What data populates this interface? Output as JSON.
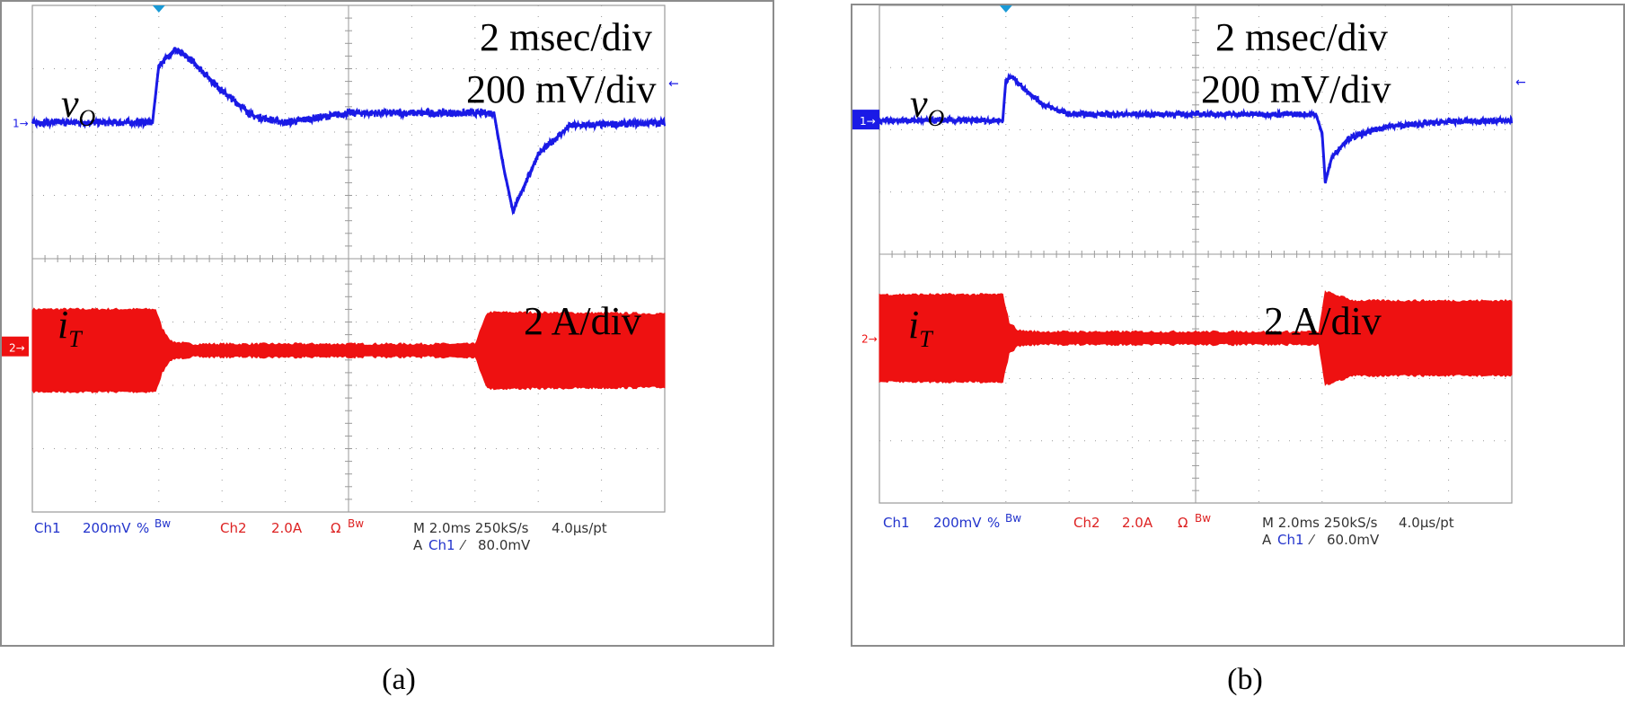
{
  "panels": [
    {
      "id": "a",
      "caption": "(a)",
      "time_div": "2 msec/div",
      "volt_div": "200 mV/div",
      "amp_div": "2 A/div",
      "vo_symbol": "v",
      "vo_sub": "O",
      "it_symbol": "i",
      "it_sub": "T",
      "ch1_marker": "1",
      "ch2_marker": "2",
      "status": {
        "ch1": "Ch1",
        "ch1_scale": "200mV",
        "ch1_cpl": "%",
        "ch1_bw": "Bw",
        "ch2": "Ch2",
        "ch2_scale": "2.0A",
        "ch2_cpl": "Ω",
        "ch2_bw": "Bw",
        "timebase": "M 2.0ms 250kS/s",
        "per_pt": "4.0µs/pt",
        "trig_src": "A",
        "trig_ch": "Ch1",
        "trig_slope": "⁄",
        "trig_level": "80.0mV"
      }
    },
    {
      "id": "b",
      "caption": "(b)",
      "time_div": "2 msec/div",
      "volt_div": "200 mV/div",
      "amp_div": "2 A/div",
      "vo_symbol": "v",
      "vo_sub": "O",
      "it_symbol": "i",
      "it_sub": "T",
      "ch1_marker": "1",
      "ch2_marker": "2",
      "status": {
        "ch1": "Ch1",
        "ch1_scale": "200mV",
        "ch1_cpl": "%",
        "ch1_bw": "Bw",
        "ch2": "Ch2",
        "ch2_scale": "2.0A",
        "ch2_cpl": "Ω",
        "ch2_bw": "Bw",
        "timebase": "M 2.0ms 250kS/s",
        "per_pt": "4.0µs/pt",
        "trig_src": "A",
        "trig_ch": "Ch1",
        "trig_slope": "⁄",
        "trig_level": "60.0mV"
      }
    }
  ],
  "colors": {
    "ch1": "#1a1ae6",
    "ch2": "#ee1111",
    "grid": "#9a9a9a",
    "status_blue": "#2233cc",
    "status_red": "#dd2222",
    "status_black": "#333333",
    "trigger": "#1a9ad6"
  },
  "chart_data": [
    {
      "type": "line",
      "panel": "a",
      "x_unit": "div",
      "xlim": [
        0,
        10
      ],
      "ylim_div": [
        -4,
        4
      ],
      "grid": true,
      "series": [
        {
          "channel": "Ch1",
          "name": "vO",
          "x": [
            0,
            1.9,
            2.0,
            2.25,
            2.5,
            3.0,
            3.5,
            4.0,
            5.0,
            7.0,
            7.3,
            7.45,
            7.6,
            8.0,
            8.5,
            10
          ],
          "y": [
            0,
            0,
            0.9,
            1.15,
            1.0,
            0.5,
            0.1,
            0.0,
            0.15,
            0.15,
            0.15,
            -0.7,
            -1.4,
            -0.5,
            -0.05,
            0
          ],
          "noise": 0.06
        },
        {
          "channel": "Ch2",
          "name": "iT",
          "x": [
            0,
            1.95,
            2.05,
            2.2,
            2.5,
            3.0,
            7.0,
            7.2,
            7.6,
            10
          ],
          "envelope": [
            0.65,
            0.65,
            0.35,
            0.14,
            0.1,
            0.1,
            0.1,
            0.6,
            0.6,
            0.58
          ],
          "mean": -0.05
        }
      ]
    },
    {
      "type": "line",
      "panel": "b",
      "x_unit": "div",
      "xlim": [
        0,
        10
      ],
      "ylim_div": [
        -4,
        4
      ],
      "grid": true,
      "series": [
        {
          "channel": "Ch1",
          "name": "vO",
          "x": [
            0,
            1.95,
            2.0,
            2.1,
            2.3,
            2.6,
            3.0,
            4.0,
            6.9,
            7.0,
            7.05,
            7.15,
            7.4,
            8.0,
            9.0,
            10
          ],
          "y": [
            0,
            0,
            0.65,
            0.7,
            0.5,
            0.25,
            0.1,
            0.1,
            0.1,
            -0.2,
            -1.0,
            -0.6,
            -0.3,
            -0.1,
            -0.02,
            0
          ],
          "noise": 0.05
        },
        {
          "channel": "Ch2",
          "name": "iT",
          "x": [
            0,
            1.95,
            2.05,
            2.2,
            2.5,
            3.0,
            6.95,
            7.05,
            7.5,
            10
          ],
          "envelope": [
            0.7,
            0.7,
            0.25,
            0.12,
            0.1,
            0.1,
            0.1,
            0.75,
            0.6,
            0.6
          ],
          "mean": 0.0
        }
      ]
    }
  ]
}
